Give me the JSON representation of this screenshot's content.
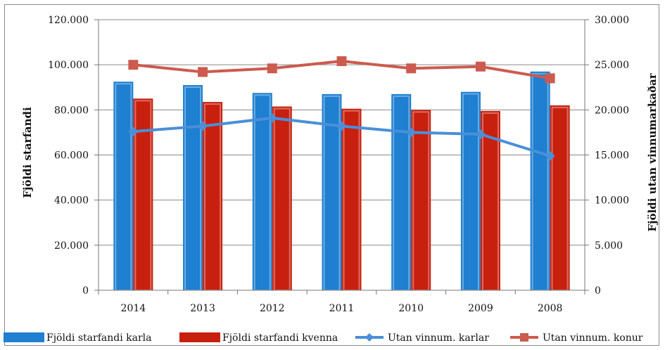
{
  "chart_data": {
    "type": "bar",
    "categories": [
      "2014",
      "2013",
      "2012",
      "2011",
      "2010",
      "2009",
      "2008"
    ],
    "ylabel_left": "Fjöldi starfandi",
    "ylabel_right": "Fjöldi utan vinnumarkaðar",
    "ylim_left": [
      0,
      120000
    ],
    "ylim_right": [
      0,
      30000
    ],
    "yticks_left": [
      "0",
      "20.000",
      "40.000",
      "60.000",
      "80.000",
      "100.000",
      "120.000"
    ],
    "yticks_right": [
      "0",
      "5.000",
      "10.000",
      "15.000",
      "20.000",
      "25.000",
      "30.000"
    ],
    "grid": "horizontal",
    "legend_position": "bottom",
    "series": [
      {
        "name": "Fjöldi starfandi karla",
        "type": "bar",
        "axis": "left",
        "color": "#1f7fd0",
        "values": [
          92500,
          91000,
          87500,
          87000,
          87000,
          88000,
          97000
        ]
      },
      {
        "name": "Fjöldi starfandi kvenna",
        "type": "bar",
        "axis": "left",
        "color": "#c8200e",
        "values": [
          85000,
          83500,
          81500,
          80500,
          80000,
          79500,
          82000
        ]
      },
      {
        "name": "Utan vinnum. karlar",
        "type": "line",
        "axis": "right",
        "color": "#4a8fd8",
        "marker": "diamond",
        "values": [
          17600,
          18200,
          19100,
          18200,
          17500,
          17300,
          14900
        ]
      },
      {
        "name": "Utan vinnum. konur",
        "type": "line",
        "axis": "right",
        "color": "#cc5a4e",
        "marker": "square",
        "values": [
          25000,
          24200,
          24600,
          25400,
          24600,
          24800,
          23500
        ]
      }
    ]
  }
}
